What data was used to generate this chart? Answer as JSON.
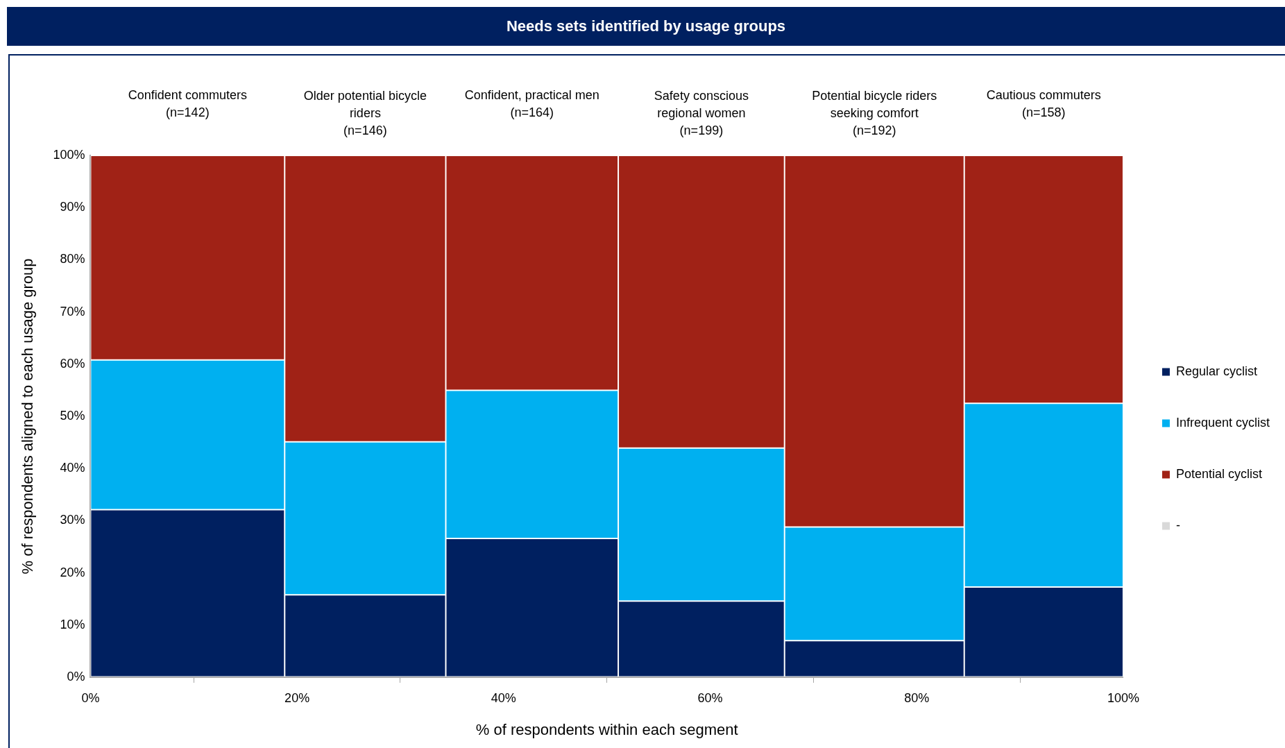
{
  "chart_data": {
    "type": "bar",
    "title": "Needs sets identified by usage groups",
    "xlabel": "% of respondents within each segment",
    "ylabel": "% of respondents aligned to each usage group",
    "annotations": [
      "Confident commuters\n(n=142)",
      "Older potential bicycle riders\n(n=146)",
      "Confident, practical men\n(n=164)",
      "Safety conscious regional women\n(n=199)",
      "Potential bicycle riders seeking comfort\n(n=192)",
      "Cautious commuters\n(n=158)"
    ],
    "x": [
      9.4,
      26.6,
      42.75,
      59.15,
      75.9,
      92.3
    ],
    "stacked": true,
    "series": [
      {
        "name": "Regular cyclist",
        "color": "#002060",
        "values": [
          32.1,
          15.8,
          26.6,
          14.6,
          7.0,
          17.3
        ]
      },
      {
        "name": "Infrequent cyclist",
        "color": "#00b0f0",
        "values": [
          28.7,
          29.3,
          28.4,
          29.3,
          21.8,
          35.2
        ]
      },
      {
        "name": "Potential cyclist",
        "color": "#a02216",
        "values": [
          39.2,
          54.9,
          45.0,
          56.1,
          71.2,
          47.5
        ]
      },
      {
        "name": "-",
        "color": "#d9d9d9",
        "values": [
          null,
          null,
          null,
          null,
          null,
          null
        ]
      }
    ],
    "xlim": [
      0,
      100
    ],
    "xticks": [
      {
        "value": 0,
        "label": "0%"
      },
      {
        "value": 20,
        "label": "20%"
      },
      {
        "value": 40,
        "label": "40%"
      },
      {
        "value": 60,
        "label": "60%"
      },
      {
        "value": 80,
        "label": "80%"
      },
      {
        "value": 100,
        "label": "100%"
      }
    ],
    "ylim": [
      0,
      100
    ],
    "yticks": [
      {
        "value": 0,
        "label": "0%"
      },
      {
        "value": 10,
        "label": "10%"
      },
      {
        "value": 20,
        "label": "20%"
      },
      {
        "value": 30,
        "label": "30%"
      },
      {
        "value": 40,
        "label": "40%"
      },
      {
        "value": 50,
        "label": "50%"
      },
      {
        "value": 60,
        "label": "60%"
      },
      {
        "value": 70,
        "label": "70%"
      },
      {
        "value": 80,
        "label": "80%"
      },
      {
        "value": 90,
        "label": "90%"
      },
      {
        "value": 100,
        "label": "100%"
      }
    ],
    "grid": false,
    "legend": "right"
  }
}
